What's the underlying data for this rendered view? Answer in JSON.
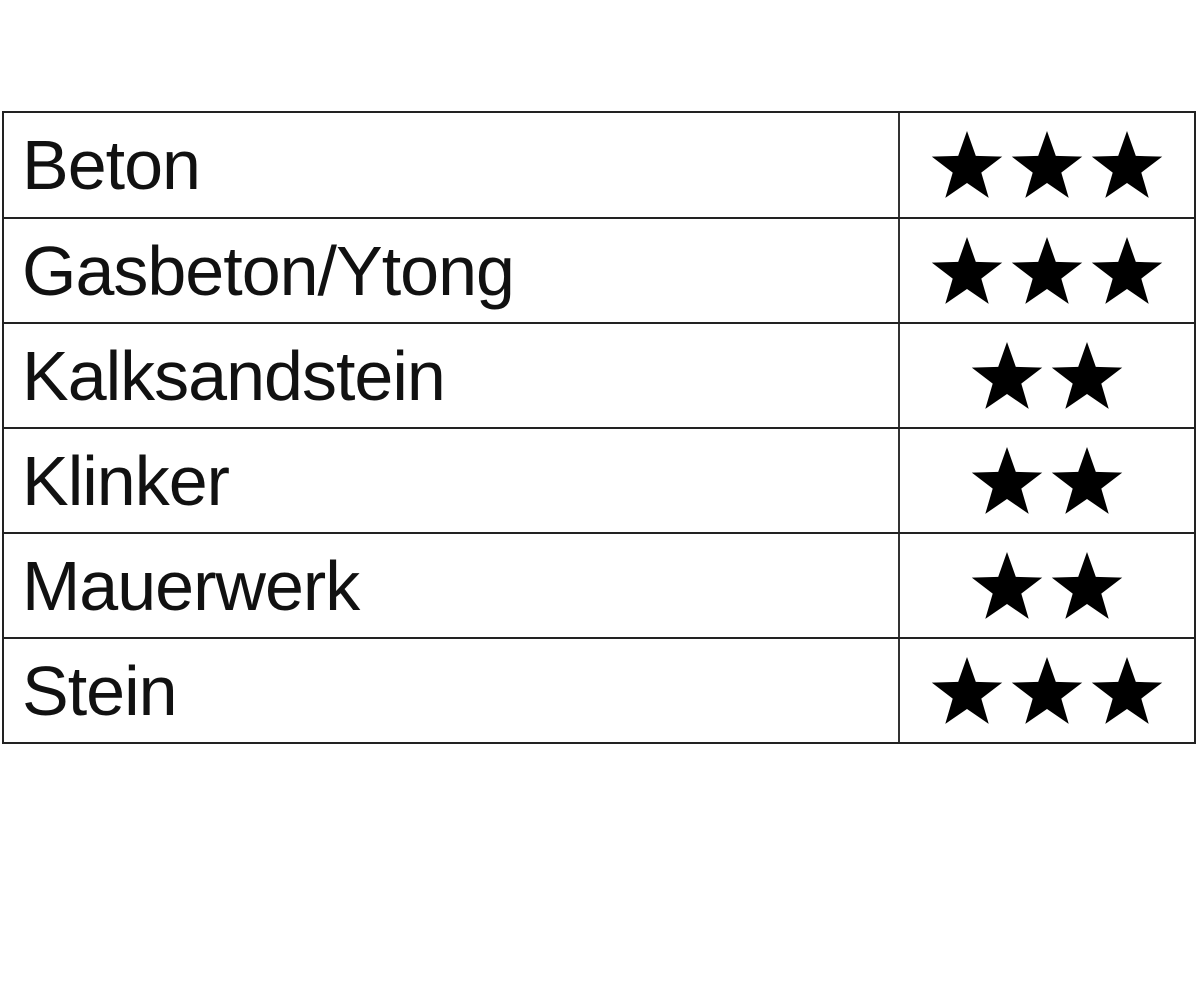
{
  "table": {
    "rows": [
      {
        "material": "Beton",
        "stars": 3
      },
      {
        "material": "Gasbeton/Ytong",
        "stars": 3
      },
      {
        "material": "Kalksandstein",
        "stars": 2
      },
      {
        "material": "Klinker",
        "stars": 2
      },
      {
        "material": "Mauerwerk",
        "stars": 2
      },
      {
        "material": "Stein",
        "stars": 3
      }
    ],
    "star_color": "#000000"
  }
}
